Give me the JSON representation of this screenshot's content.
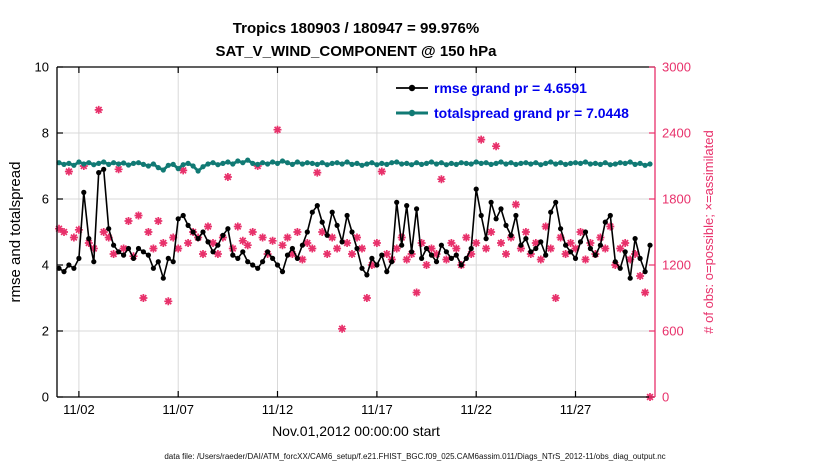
{
  "title": {
    "line1": "Tropics 180903 / 180947 = 99.976%",
    "line2": "SAT_V_WIND_COMPONENT @ 150 hPa"
  },
  "legend": {
    "rmse": "rmse grand pr = 4.6591",
    "totalspread": "totalspread grand pr = 7.0448",
    "text_color": "#0000EE"
  },
  "axes": {
    "left_label": "rmse and totalspread",
    "right_label": "# of obs: o=possible; ×=assimilated",
    "x_label": "Nov.01,2012 00:00:00 start",
    "left_ticks": [
      0,
      2,
      4,
      6,
      8,
      10
    ],
    "right_ticks": [
      0,
      600,
      1200,
      1800,
      2400,
      3000
    ],
    "x_ticks": [
      2,
      7,
      12,
      17,
      22,
      27
    ],
    "x_tick_labels": [
      "11/02",
      "11/07",
      "11/12",
      "11/17",
      "11/22",
      "11/27"
    ],
    "left_range": [
      0,
      10
    ],
    "right_range": [
      0,
      3000
    ],
    "x_range": [
      0.9,
      31.0
    ],
    "grid": true
  },
  "caption": "data file: /Users/raeder/DAI/ATM_forcXX/CAM6_setup/f.e21.FHIST_BGC.f09_025.CAM6assim.011/Diags_NTrS_2012-11/obs_diag_output.nc",
  "colors": {
    "rmse": "#000000",
    "totalspread": "#117a74",
    "obs": "#e8316b",
    "grid": "#d9d9d9",
    "spine": "#000000"
  },
  "chart_data": {
    "type": "line",
    "title": "Tropics 180903 / 180947 = 99.976% — SAT_V_WIND_COMPONENT @ 150 hPa",
    "xlabel": "Nov.01,2012 00:00:00 start",
    "ylabel_left": "rmse and totalspread",
    "ylabel_right": "# of obs: o=possible; ×=assimilated",
    "x_start": 1.0,
    "x_step": 0.25,
    "x_unit": "day of November 2012 (6-hourly bins)",
    "ylim_left": [
      0,
      10
    ],
    "ylim_right": [
      0,
      3000
    ],
    "legend_position": "top-center-inside",
    "grid": true,
    "grand_pr": {
      "rmse": 4.6591,
      "totalspread": 7.0448
    },
    "series": [
      {
        "name": "rmse",
        "axis": "left",
        "marker": "circle",
        "color_key": "rmse",
        "values": [
          3.9,
          3.8,
          4.0,
          3.9,
          4.2,
          6.2,
          4.8,
          4.1,
          6.8,
          6.9,
          5.1,
          4.6,
          4.4,
          4.3,
          4.5,
          4.2,
          4.5,
          4.4,
          4.3,
          3.9,
          4.1,
          3.6,
          4.2,
          4.1,
          5.4,
          5.5,
          5.2,
          5.0,
          4.8,
          5.0,
          4.7,
          4.4,
          4.6,
          4.9,
          5.1,
          4.3,
          4.2,
          4.4,
          4.1,
          4.0,
          3.9,
          4.1,
          4.4,
          4.2,
          4.0,
          3.8,
          4.3,
          4.5,
          4.2,
          4.6,
          5.0,
          5.6,
          5.8,
          5.3,
          4.9,
          5.6,
          5.2,
          4.7,
          5.5,
          5.0,
          4.5,
          3.9,
          3.7,
          4.2,
          4.0,
          4.3,
          3.8,
          4.1,
          5.9,
          4.6,
          5.8,
          4.4,
          5.7,
          4.2,
          4.5,
          4.3,
          4.1,
          4.6,
          4.4,
          4.2,
          4.3,
          4.0,
          4.2,
          4.5,
          6.3,
          5.5,
          4.8,
          5.9,
          5.4,
          5.7,
          5.2,
          4.9,
          5.5,
          4.6,
          4.8,
          4.4,
          4.5,
          4.7,
          4.3,
          5.6,
          5.9,
          5.1,
          4.6,
          4.4,
          4.2,
          4.7,
          5.0,
          4.5,
          4.3,
          4.6,
          5.3,
          5.5,
          4.1,
          3.9,
          4.4,
          3.6,
          4.8,
          4.2,
          3.8,
          4.6
        ]
      },
      {
        "name": "totalspread",
        "axis": "left",
        "marker": "circle",
        "color_key": "totalspread",
        "values": [
          7.1,
          7.05,
          7.08,
          7.02,
          7.12,
          7.06,
          7.1,
          7.04,
          7.08,
          7.12,
          7.05,
          7.1,
          7.06,
          7.09,
          7.03,
          7.08,
          7.1,
          7.05,
          7.0,
          7.06,
          6.95,
          6.88,
          7.02,
          7.05,
          6.92,
          7.04,
          7.08,
          7.0,
          6.85,
          6.98,
          7.06,
          7.1,
          7.04,
          7.08,
          7.12,
          7.06,
          7.15,
          7.1,
          7.18,
          7.08,
          7.05,
          7.1,
          7.06,
          7.12,
          7.08,
          7.15,
          7.1,
          7.05,
          7.12,
          7.06,
          7.1,
          7.08,
          7.05,
          7.1,
          7.04,
          7.08,
          7.1,
          7.06,
          7.12,
          7.05,
          7.08,
          7.02,
          7.06,
          7.1,
          7.04,
          7.08,
          7.05,
          7.1,
          7.12,
          7.06,
          7.08,
          7.04,
          7.1,
          7.05,
          7.08,
          7.12,
          7.06,
          7.1,
          7.04,
          7.08,
          7.05,
          7.1,
          7.08,
          7.06,
          7.12,
          7.08,
          7.1,
          7.05,
          7.08,
          7.12,
          7.06,
          7.1,
          7.05,
          7.08,
          7.1,
          7.06,
          7.1,
          7.04,
          7.08,
          7.12,
          7.06,
          7.1,
          7.05,
          7.08,
          7.1,
          7.08,
          7.12,
          7.06,
          7.08,
          7.05,
          7.1,
          7.04,
          7.06,
          7.1,
          7.08,
          7.12,
          7.05,
          7.08,
          7.02,
          7.06
        ]
      },
      {
        "name": "obs_assimilated",
        "axis": "right",
        "marker": "asterisk",
        "color_key": "obs",
        "values": [
          1530,
          1500,
          2050,
          1450,
          1520,
          2100,
          1400,
          1350,
          2610,
          1500,
          1450,
          1300,
          2070,
          1350,
          1600,
          1280,
          1650,
          900,
          1500,
          1350,
          1600,
          1400,
          870,
          1450,
          1350,
          2060,
          1400,
          1500,
          1450,
          1300,
          1550,
          1400,
          1300,
          1450,
          2000,
          1350,
          1550,
          1420,
          1380,
          1500,
          2100,
          1450,
          1300,
          1420,
          2430,
          1380,
          1450,
          1300,
          1500,
          1250,
          1400,
          1350,
          2040,
          1500,
          1300,
          1450,
          1350,
          620,
          1400,
          1300,
          1450,
          1350,
          900,
          1200,
          1400,
          2050,
          1300,
          1250,
          1350,
          1450,
          1250,
          1300,
          950,
          1400,
          1200,
          1350,
          1300,
          1980,
          1250,
          1400,
          1350,
          1200,
          1450,
          1300,
          1400,
          2340,
          1350,
          1500,
          2280,
          1400,
          1300,
          1450,
          1750,
          1350,
          1500,
          1300,
          1400,
          1250,
          1550,
          1350,
          900,
          1450,
          1300,
          1400,
          1350,
          1500,
          1250,
          1400,
          1300,
          1450,
          1350,
          1550,
          1200,
          1350,
          1400,
          1250,
          1300,
          1100,
          950,
          0
        ]
      }
    ]
  }
}
